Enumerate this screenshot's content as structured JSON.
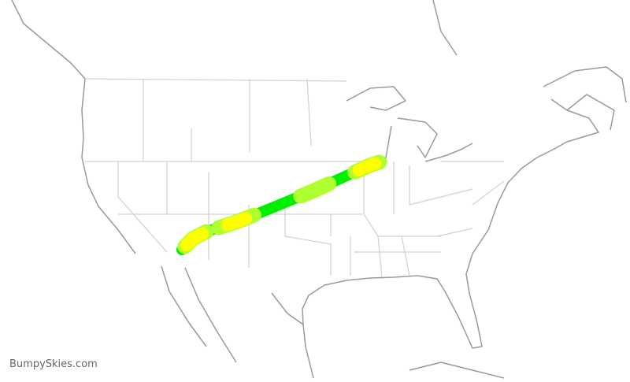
{
  "watermark": "BumpySkies.com",
  "colors": {
    "route_base": "#00ee00",
    "light": "#adff2f",
    "moderate": "#ffff00",
    "coastline": "#999999",
    "state_lines": "#d0d0d0"
  },
  "route": {
    "waypoints_latlon": [
      [
        33.43,
        -112.01
      ],
      [
        34.5,
        -110.7
      ],
      [
        35.2,
        -109.0
      ],
      [
        36.1,
        -105.5
      ],
      [
        37.0,
        -102.6
      ],
      [
        39.2,
        -95.9
      ],
      [
        40.6,
        -92.1
      ],
      [
        41.6,
        -89.3
      ],
      [
        41.98,
        -87.9
      ]
    ],
    "turbulence_segments": [
      {
        "from": 0.02,
        "to": 0.14,
        "level": "light"
      },
      {
        "from": 0.03,
        "to": 0.12,
        "level": "moderate"
      },
      {
        "from": 0.2,
        "to": 0.37,
        "level": "light"
      },
      {
        "from": 0.24,
        "to": 0.33,
        "level": "moderate"
      },
      {
        "from": 0.6,
        "to": 0.74,
        "level": "light"
      },
      {
        "from": 0.87,
        "to": 0.99,
        "level": "light"
      },
      {
        "from": 0.89,
        "to": 0.97,
        "level": "moderate"
      }
    ]
  }
}
